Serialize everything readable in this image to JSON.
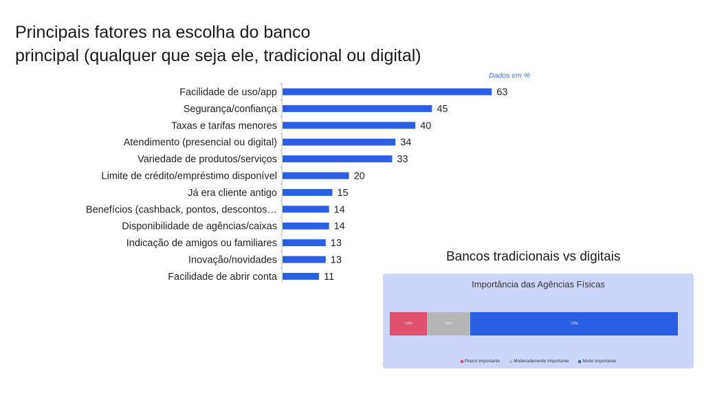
{
  "title": {
    "line1": "Principais fatores na escolha do banco",
    "line2": "principal (qualquer que seja ele, tradicional ou digital)"
  },
  "units_note": "Dados em %",
  "section_title": "Bancos tradicionais vs digitais",
  "chart_data": [
    {
      "type": "bar",
      "orientation": "horizontal",
      "categories": [
        "Facilidade de uso/app",
        "Segurança/confiança",
        "Taxas e tarifas menores",
        "Atendimento (presencial ou digital)",
        "Variedade de produtos/serviços",
        "Limite de crédito/empréstimo disponível",
        "Já era cliente antigo",
        "Benefícios (cashback, pontos, descontos…",
        "Disponibilidade de agências/caixas",
        "Indicação de amigos ou familiares",
        "Inovação/novidades",
        "Facilidade de abrir conta"
      ],
      "values": [
        63,
        45,
        40,
        34,
        33,
        20,
        15,
        14,
        14,
        13,
        13,
        11
      ],
      "xlim": [
        0,
        100
      ],
      "color": "#2a5fe3",
      "grid": false
    },
    {
      "type": "bar",
      "orientation": "horizontal",
      "stacked": true,
      "title": "Importância das Agências Físicas",
      "series": [
        {
          "name": "Pouco Importante",
          "values": [
            13
          ],
          "label": "13%",
          "color": "#e0506e"
        },
        {
          "name": "Moderadamente Importante",
          "values": [
            15
          ],
          "label": "15%",
          "color": "#b5b5b5"
        },
        {
          "name": "Muito Importante",
          "values": [
            72
          ],
          "label": "72%",
          "color": "#2a5fe3"
        }
      ],
      "legend": "bottom",
      "background": "#cdd5fb"
    }
  ]
}
